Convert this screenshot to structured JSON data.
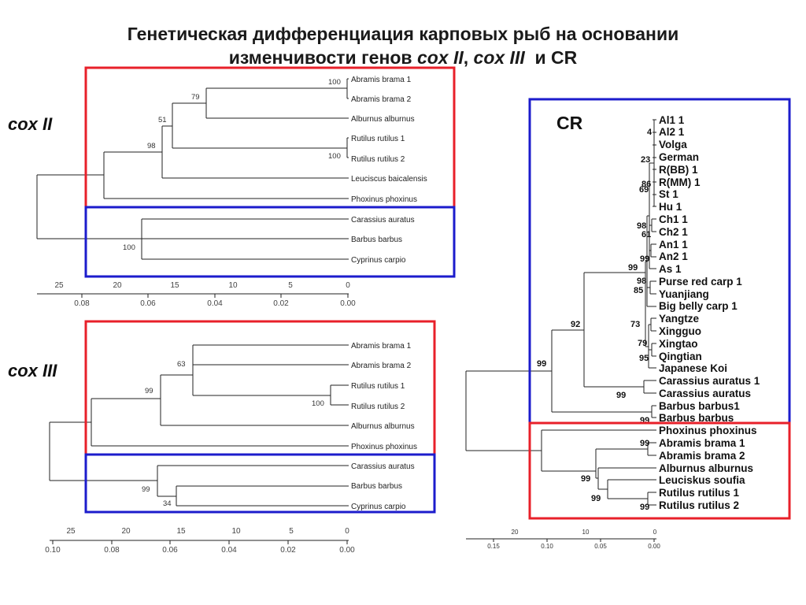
{
  "title": {
    "line1": "Генетическая дифференциация карповых рыб на основании",
    "line2_prefix": "изменчивости генов ",
    "gene1": "cox II",
    "sep": ", ",
    "gene2": "cox III",
    "and": "  и CR"
  },
  "labels": {
    "cox2": "cox II",
    "cox3": "cox III",
    "cr": "CR"
  },
  "colors": {
    "red_box": "#e8202a",
    "blue_box": "#1c1ccc"
  },
  "cox2_tree": {
    "leaves": [
      "Abramis brama 1",
      "Abramis brama 2",
      "Alburnus alburnus",
      "Rutilus rutilus 1",
      "Rutilus rutilus 2",
      "Leuciscus baicalensis",
      "Phoxinus phoxinus",
      "Carassius auratus",
      "Barbus barbus",
      "Cyprinus carpio"
    ],
    "bootstrap": [
      "100",
      "79",
      "51",
      "98",
      "100",
      "100"
    ],
    "axis_top": [
      "25",
      "20",
      "15",
      "10",
      "5",
      "0"
    ],
    "axis_bottom": [
      "0.08",
      "0.06",
      "0.04",
      "0.02",
      "0.00"
    ]
  },
  "cox3_tree": {
    "leaves": [
      "Abramis brama 1",
      "Abramis brama 2",
      "Rutilus rutilus 1",
      "Rutilus rutilus 2",
      "Alburnus alburnus",
      "Phoxinus phoxinus",
      "Carassius auratus",
      "Barbus barbus",
      "Cyprinus carpio"
    ],
    "bootstrap": [
      "63",
      "100",
      "99",
      "99",
      "34"
    ],
    "axis_top": [
      "25",
      "20",
      "15",
      "10",
      "5",
      "0"
    ],
    "axis_bottom": [
      "0.10",
      "0.08",
      "0.06",
      "0.04",
      "0.02",
      "0.00"
    ]
  },
  "cr_tree": {
    "leaves": [
      "Al1 1",
      "Al2 1",
      "Volga",
      "German",
      "R(BB) 1",
      "R(MM) 1",
      "St 1",
      "Hu 1",
      "Ch1 1",
      "Ch2 1",
      "An1 1",
      "An2 1",
      "As 1",
      "Purse red carp 1",
      "Yuanjiang",
      "Big belly carp 1",
      "Yangtze",
      "Xingguo",
      "Xingtao",
      "Qingtian",
      "Japanese Koi",
      "Carassius auratus 1",
      "Carassius auratus",
      "Barbus barbus1",
      "Barbus barbus",
      "Phoxinus phoxinus",
      "Abramis brama 1",
      "Abramis brama 2",
      "Alburnus alburnus",
      "Leuciskus soufia",
      "Rutilus rutilus 1",
      "Rutilus rutilus 2"
    ],
    "bootstrap": [
      "4",
      "23",
      "86",
      "69",
      "98",
      "61",
      "99",
      "99",
      "98",
      "85",
      "73",
      "79",
      "95",
      "92",
      "99",
      "99",
      "99",
      "99",
      "99",
      "99",
      "99"
    ],
    "axis_top": [
      "20",
      "10",
      "0"
    ],
    "axis_bottom": [
      "0.15",
      "0.10",
      "0.05",
      "0.00"
    ]
  }
}
